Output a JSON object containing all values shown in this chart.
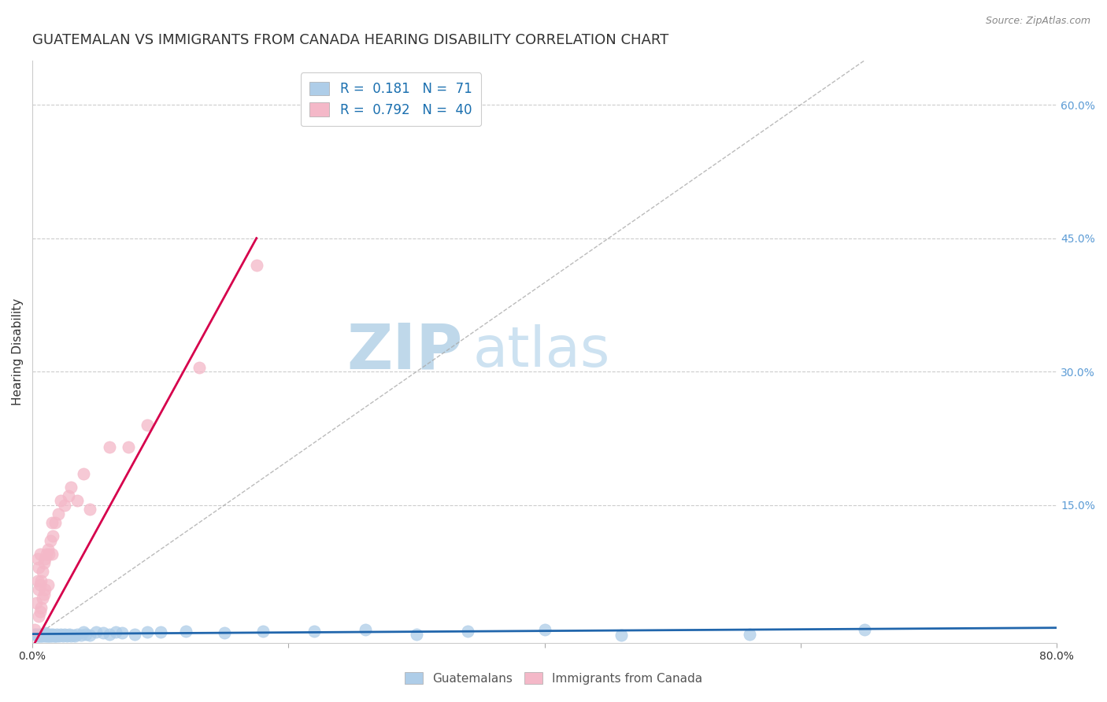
{
  "title": "GUATEMALAN VS IMMIGRANTS FROM CANADA HEARING DISABILITY CORRELATION CHART",
  "source": "Source: ZipAtlas.com",
  "ylabel": "Hearing Disability",
  "x_min": 0.0,
  "x_max": 0.8,
  "y_min": -0.005,
  "y_max": 0.65,
  "x_ticks": [
    0.0,
    0.2,
    0.4,
    0.6,
    0.8
  ],
  "y_ticks_right": [
    0.15,
    0.3,
    0.45,
    0.6
  ],
  "y_tick_labels_right": [
    "15.0%",
    "30.0%",
    "45.0%",
    "60.0%"
  ],
  "legend_blue_r": "0.181",
  "legend_blue_n": "71",
  "legend_pink_r": "0.792",
  "legend_pink_n": "40",
  "legend_label_blue": "Guatemalans",
  "legend_label_pink": "Immigrants from Canada",
  "blue_color": "#aecde8",
  "pink_color": "#f4b8c8",
  "blue_line_color": "#2166ac",
  "pink_line_color": "#d6004c",
  "watermark_zip_color": "#b8d4e8",
  "watermark_atlas_color": "#c8dff0",
  "title_fontsize": 13,
  "axis_label_fontsize": 11,
  "tick_fontsize": 10,
  "blue_x": [
    0.002,
    0.003,
    0.004,
    0.005,
    0.005,
    0.006,
    0.006,
    0.007,
    0.007,
    0.008,
    0.008,
    0.009,
    0.009,
    0.01,
    0.01,
    0.01,
    0.011,
    0.011,
    0.012,
    0.012,
    0.012,
    0.013,
    0.013,
    0.014,
    0.014,
    0.015,
    0.015,
    0.016,
    0.016,
    0.017,
    0.017,
    0.018,
    0.019,
    0.019,
    0.02,
    0.021,
    0.022,
    0.023,
    0.024,
    0.025,
    0.026,
    0.027,
    0.028,
    0.029,
    0.03,
    0.032,
    0.033,
    0.035,
    0.038,
    0.04,
    0.042,
    0.045,
    0.05,
    0.055,
    0.06,
    0.065,
    0.07,
    0.08,
    0.09,
    0.1,
    0.12,
    0.15,
    0.18,
    0.22,
    0.26,
    0.3,
    0.34,
    0.4,
    0.46,
    0.56,
    0.65
  ],
  "blue_y": [
    0.005,
    0.005,
    0.003,
    0.005,
    0.003,
    0.004,
    0.003,
    0.004,
    0.003,
    0.005,
    0.003,
    0.004,
    0.005,
    0.004,
    0.006,
    0.003,
    0.005,
    0.003,
    0.004,
    0.003,
    0.005,
    0.003,
    0.004,
    0.003,
    0.005,
    0.004,
    0.003,
    0.004,
    0.005,
    0.003,
    0.004,
    0.003,
    0.005,
    0.003,
    0.004,
    0.003,
    0.005,
    0.004,
    0.003,
    0.005,
    0.004,
    0.003,
    0.004,
    0.005,
    0.003,
    0.004,
    0.003,
    0.005,
    0.004,
    0.007,
    0.005,
    0.004,
    0.007,
    0.006,
    0.005,
    0.007,
    0.006,
    0.005,
    0.007,
    0.007,
    0.008,
    0.006,
    0.008,
    0.008,
    0.01,
    0.005,
    0.008,
    0.01,
    0.004,
    0.005,
    0.01
  ],
  "pink_x": [
    0.002,
    0.003,
    0.004,
    0.004,
    0.005,
    0.005,
    0.005,
    0.006,
    0.006,
    0.006,
    0.007,
    0.007,
    0.008,
    0.008,
    0.009,
    0.009,
    0.01,
    0.01,
    0.011,
    0.012,
    0.012,
    0.013,
    0.014,
    0.015,
    0.015,
    0.016,
    0.018,
    0.02,
    0.022,
    0.025,
    0.028,
    0.03,
    0.035,
    0.04,
    0.045,
    0.06,
    0.075,
    0.09,
    0.13,
    0.175
  ],
  "pink_y": [
    0.01,
    0.04,
    0.065,
    0.09,
    0.025,
    0.055,
    0.08,
    0.03,
    0.06,
    0.095,
    0.035,
    0.065,
    0.045,
    0.075,
    0.05,
    0.085,
    0.055,
    0.09,
    0.095,
    0.06,
    0.1,
    0.095,
    0.11,
    0.095,
    0.13,
    0.115,
    0.13,
    0.14,
    0.155,
    0.15,
    0.16,
    0.17,
    0.155,
    0.185,
    0.145,
    0.215,
    0.215,
    0.24,
    0.305,
    0.42
  ],
  "blue_trend_x": [
    0.0,
    0.8
  ],
  "blue_trend_y": [
    0.005,
    0.012
  ],
  "pink_trend_x": [
    0.0,
    0.175
  ],
  "pink_trend_y": [
    -0.01,
    0.45
  ]
}
